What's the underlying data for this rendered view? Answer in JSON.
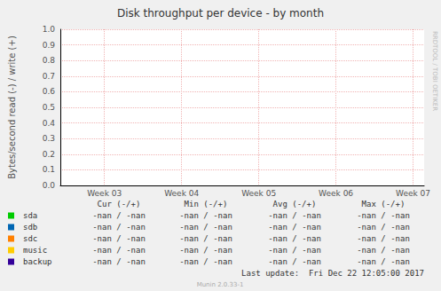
{
  "chart_data": {
    "type": "line",
    "title": "Disk throughput per device - by month",
    "y_label": "Bytes/second read (-) / write (+)",
    "categories": [
      null,
      null,
      null,
      null,
      "Week 03",
      null,
      null,
      null,
      null,
      null,
      null,
      "Week 04",
      null,
      null,
      null,
      null,
      null,
      null,
      "Week 05",
      null,
      null,
      null,
      null,
      null,
      null,
      "Week 06",
      null,
      null,
      null,
      null,
      null,
      null,
      "Week 07",
      null
    ],
    "series": [
      {
        "name": "sda",
        "color": "#00cc00",
        "values": [
          null,
          null,
          null,
          null,
          null,
          null,
          null,
          null,
          null,
          null,
          null,
          null,
          null,
          null,
          null,
          null,
          null,
          null,
          null,
          null,
          null,
          null,
          null,
          null,
          null,
          null,
          null,
          null,
          null,
          null,
          null,
          null,
          null,
          null
        ],
        "table_values": [
          "-nan / -nan",
          "-nan / -nan",
          "-nan / -nan",
          "-nan / -nan"
        ]
      },
      {
        "name": "sdb",
        "color": "#0066b3",
        "values": [
          null,
          null,
          null,
          null,
          null,
          null,
          null,
          null,
          null,
          null,
          null,
          null,
          null,
          null,
          null,
          null,
          null,
          null,
          null,
          null,
          null,
          null,
          null,
          null,
          null,
          null,
          null,
          null,
          null,
          null,
          null,
          null,
          null,
          null
        ],
        "table_values": [
          "-nan / -nan",
          "-nan / -nan",
          "-nan / -nan",
          "-nan / -nan"
        ]
      },
      {
        "name": "sdc",
        "color": "#ff8000",
        "values": [
          null,
          null,
          null,
          null,
          null,
          null,
          null,
          null,
          null,
          null,
          null,
          null,
          null,
          null,
          null,
          null,
          null,
          null,
          null,
          null,
          null,
          null,
          null,
          null,
          null,
          null,
          null,
          null,
          null,
          null,
          null,
          null,
          null,
          null
        ],
        "table_values": [
          "-nan / -nan",
          "-nan / -nan",
          "-nan / -nan",
          "-nan / -nan"
        ]
      },
      {
        "name": "music",
        "color": "#ffcc00",
        "values": [
          null,
          null,
          null,
          null,
          null,
          null,
          null,
          null,
          null,
          null,
          null,
          null,
          null,
          null,
          null,
          null,
          null,
          null,
          null,
          null,
          null,
          null,
          null,
          null,
          null,
          null,
          null,
          null,
          null,
          null,
          null,
          null,
          null,
          null
        ],
        "table_values": [
          "-nan / -nan",
          "-nan / -nan",
          "-nan / -nan",
          "-nan / -nan"
        ]
      },
      {
        "name": "backup",
        "color": "#330099",
        "values": [
          null,
          null,
          null,
          null,
          null,
          null,
          null,
          null,
          null,
          null,
          null,
          null,
          null,
          null,
          null,
          null,
          null,
          null,
          null,
          null,
          null,
          null,
          null,
          null,
          null,
          null,
          null,
          null,
          null,
          null,
          null,
          null,
          null,
          null
        ],
        "table_values": [
          "-nan / -nan",
          "-nan / -nan",
          "-nan / -nan",
          "-nan / -nan"
        ]
      }
    ],
    "ylim": [
      0,
      1
    ],
    "yticks": [
      {
        "value": 0,
        "label": "0.0"
      },
      {
        "value": 0.1,
        "label": "0.1"
      },
      {
        "value": 0.2,
        "label": "0.2"
      },
      {
        "value": 0.3,
        "label": "0.3"
      },
      {
        "value": 0.4,
        "label": "0.4"
      },
      {
        "value": 0.5,
        "label": "0.5"
      },
      {
        "value": 0.6,
        "label": "0.6"
      },
      {
        "value": 0.7,
        "label": "0.7"
      },
      {
        "value": 0.8,
        "label": "0.8"
      },
      {
        "value": 0.9,
        "label": "0.9"
      },
      {
        "value": 1,
        "label": "1.0"
      }
    ],
    "grid": true,
    "table_columns": [
      "Cur (-/+)",
      "Min (-/+)",
      "Avg (-/+)",
      "Max (-/+)"
    ],
    "last_update": "Last update:  Fri Dec 22 12:05:00 2017",
    "footer": "Munin 2.0.33-1",
    "watermark": "RRDTOOL / TOBI OETIKER"
  }
}
